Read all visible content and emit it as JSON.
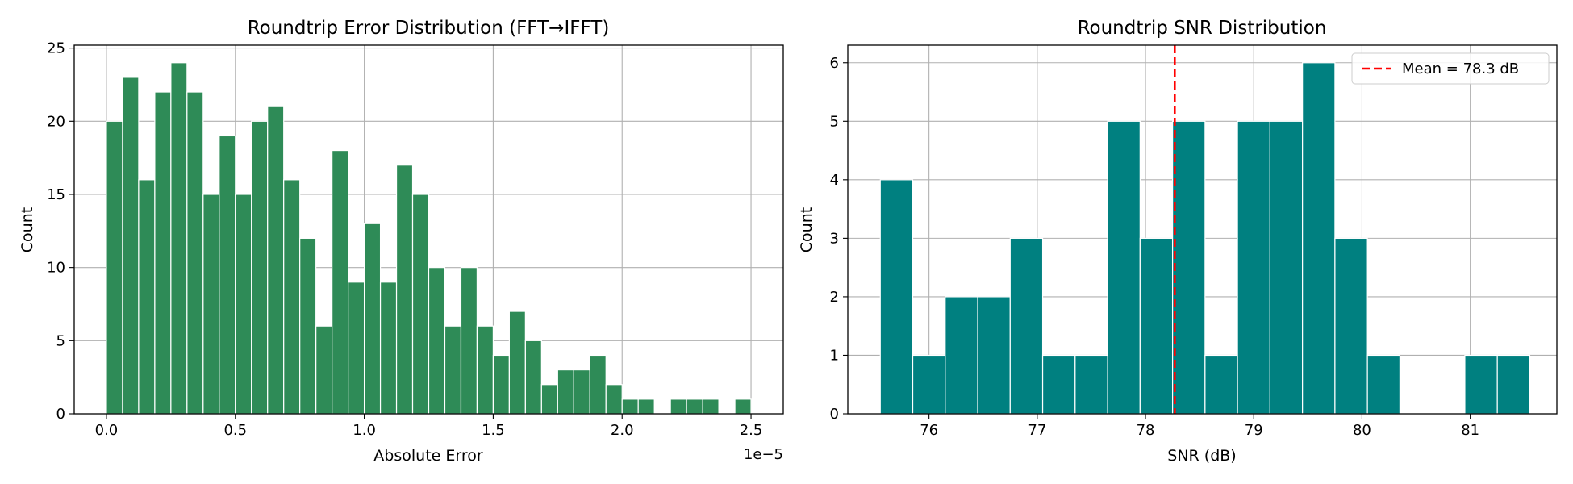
{
  "chart_data": [
    {
      "type": "bar",
      "title": "Roundtrip Error Distribution (FFT→IFFT)",
      "xlabel": "Absolute Error",
      "ylabel": "Count",
      "x_offset_label": "1e−5",
      "bar_color": "#2e8b57",
      "grid": true,
      "xlim": [
        -0.125,
        2.625
      ],
      "ylim": [
        0,
        25.2
      ],
      "x_ticks": [
        0.0,
        0.5,
        1.0,
        1.5,
        2.0,
        2.5
      ],
      "x_tick_labels": [
        "0.0",
        "0.5",
        "1.0",
        "1.5",
        "2.0",
        "2.5"
      ],
      "y_ticks": [
        0,
        5,
        10,
        15,
        20,
        25
      ],
      "y_tick_labels": [
        "0",
        "5",
        "10",
        "15",
        "20",
        "25"
      ],
      "bin_start": 0.0,
      "bin_width": 0.0625,
      "values": [
        20,
        23,
        16,
        22,
        24,
        22,
        15,
        19,
        15,
        20,
        21,
        16,
        12,
        6,
        18,
        9,
        13,
        9,
        17,
        15,
        10,
        6,
        10,
        6,
        4,
        7,
        5,
        2,
        3,
        3,
        4,
        2,
        1,
        1,
        0,
        1,
        1,
        1,
        0,
        1
      ]
    },
    {
      "type": "bar",
      "title": "Roundtrip SNR Distribution",
      "xlabel": "SNR (dB)",
      "ylabel": "Count",
      "bar_color": "#008080",
      "grid": true,
      "xlim": [
        75.25,
        81.8
      ],
      "ylim": [
        0,
        6.3
      ],
      "x_ticks": [
        76,
        77,
        78,
        79,
        80,
        81
      ],
      "x_tick_labels": [
        "76",
        "77",
        "78",
        "79",
        "80",
        "81"
      ],
      "y_ticks": [
        0,
        1,
        2,
        3,
        4,
        5,
        6
      ],
      "y_tick_labels": [
        "0",
        "1",
        "2",
        "3",
        "4",
        "5",
        "6"
      ],
      "bin_start": 75.55,
      "bin_width": 0.3,
      "values": [
        4,
        1,
        2,
        2,
        3,
        1,
        1,
        5,
        3,
        5,
        1,
        5,
        5,
        6,
        3,
        1,
        0,
        0,
        1,
        1
      ],
      "mean_line": {
        "x": 78.27,
        "color": "#ff0000",
        "label": "Mean = 78.3 dB"
      },
      "legend_position": "top-right"
    }
  ]
}
